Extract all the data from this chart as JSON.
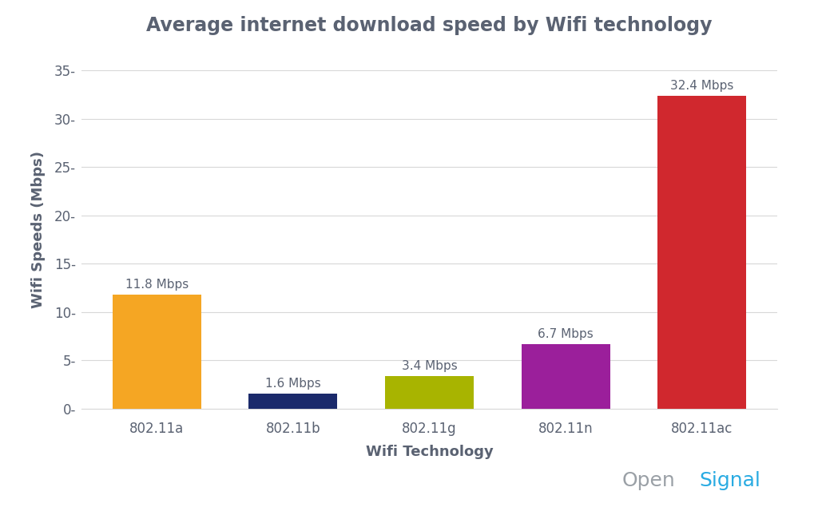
{
  "categories": [
    "802.11a",
    "802.11b",
    "802.11g",
    "802.11n",
    "802.11ac"
  ],
  "values": [
    11.8,
    1.6,
    3.4,
    6.7,
    32.4
  ],
  "bar_colors": [
    "#F5A623",
    "#1B2A6B",
    "#A8B400",
    "#9B1F9B",
    "#D0282E"
  ],
  "labels": [
    "11.8 Mbps",
    "1.6 Mbps",
    "3.4 Mbps",
    "6.7 Mbps",
    "32.4 Mbps"
  ],
  "title": "Average internet download speed by Wifi technology",
  "xlabel": "Wifi Technology",
  "ylabel": "Wifi Speeds (Mbps)",
  "ylim": [
    0,
    37
  ],
  "yticks": [
    0,
    5,
    10,
    15,
    20,
    25,
    30,
    35
  ],
  "title_fontsize": 17,
  "label_fontsize": 13,
  "tick_fontsize": 12,
  "annotation_fontsize": 11,
  "background_color": "#FFFFFF",
  "text_color": "#5A6272",
  "grid_color": "#D8D8D8",
  "opensignal_open_color": "#9AA0A6",
  "opensignal_signal_color": "#29ABE2",
  "opensignal_fontsize": 18
}
